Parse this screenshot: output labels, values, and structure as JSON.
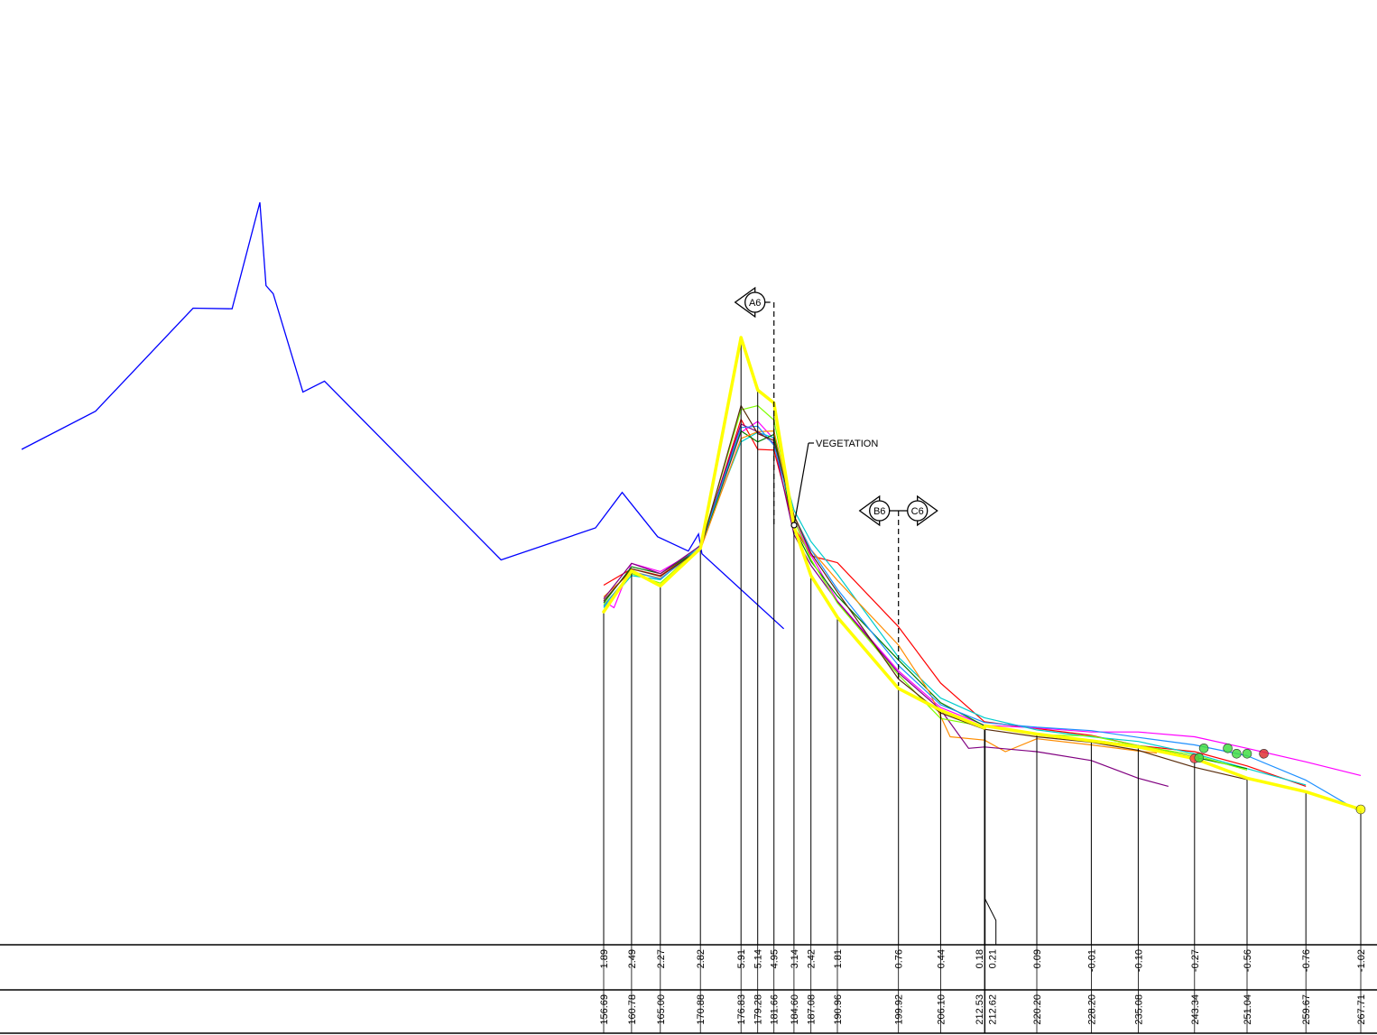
{
  "chart_data": {
    "type": "line",
    "x_unit": "chainage",
    "y_unit": "elevation",
    "stations": [
      {
        "chainage": "156.69",
        "elevation": "1.89"
      },
      {
        "chainage": "160.78",
        "elevation": "2.49"
      },
      {
        "chainage": "165.00",
        "elevation": "2.27"
      },
      {
        "chainage": "170.88",
        "elevation": "2.82"
      },
      {
        "chainage": "176.83",
        "elevation": "5.91"
      },
      {
        "chainage": "179.28",
        "elevation": "5.14"
      },
      {
        "chainage": "181.66",
        "elevation": "4.95"
      },
      {
        "chainage": "184.60",
        "elevation": "3.14"
      },
      {
        "chainage": "187.08",
        "elevation": "2.42"
      },
      {
        "chainage": "190.96",
        "elevation": "1.81"
      },
      {
        "chainage": "199.92",
        "elevation": "0.76"
      },
      {
        "chainage": "206.10",
        "elevation": "0.44"
      },
      {
        "chainage": "212.53",
        "elevation": "0.18"
      },
      {
        "chainage": "212.62",
        "elevation": "0.21"
      },
      {
        "chainage": "220.20",
        "elevation": "0.09"
      },
      {
        "chainage": "228.20",
        "elevation": "-0.01"
      },
      {
        "chainage": "235.08",
        "elevation": "-0.10"
      },
      {
        "chainage": "243.34",
        "elevation": "-0.27"
      },
      {
        "chainage": "251.04",
        "elevation": "-0.56"
      },
      {
        "chainage": "259.67",
        "elevation": "-0.76"
      },
      {
        "chainage": "267.71",
        "elevation": "-1.02"
      }
    ],
    "main_profile": {
      "color": "#ffff00",
      "x": [
        156.69,
        160.78,
        165.0,
        170.88,
        176.83,
        179.28,
        181.66,
        184.6,
        187.08,
        190.96,
        199.92,
        206.1,
        212.53,
        212.62,
        220.2,
        228.2,
        235.08,
        243.34,
        251.04,
        259.67,
        267.71
      ],
      "y": [
        1.89,
        2.49,
        2.27,
        2.82,
        5.91,
        5.14,
        4.95,
        3.14,
        2.42,
        1.81,
        0.76,
        0.44,
        0.18,
        0.21,
        0.09,
        -0.01,
        -0.1,
        -0.27,
        -0.56,
        -0.76,
        -1.02
      ]
    },
    "backshore_profile": {
      "color": "#0000ff",
      "x": [
        100.0,
        107.2,
        116.7,
        120.5,
        123.2,
        123.8,
        124.5,
        127.4,
        129.5,
        146.7,
        155.9,
        159.4,
        164.6,
        169.1,
        170.6,
        171.1,
        183.1
      ],
      "y": [
        4.27,
        4.83,
        6.34,
        6.33,
        7.89,
        6.67,
        6.55,
        5.11,
        5.27,
        2.65,
        3.12,
        3.64,
        2.99,
        2.78,
        3.03,
        2.74,
        1.64
      ]
    },
    "historical_profiles": [
      {
        "color": "#ff0000",
        "x": [
          156.69,
          160.78,
          165.0,
          170.88,
          176.83,
          179.28,
          181.66,
          184.6,
          187.08,
          190.96,
          199.92,
          206.1,
          212.53,
          220.2,
          228.2,
          235.08,
          243.34,
          251.04,
          259.67
        ],
        "y": [
          2.28,
          2.52,
          2.42,
          2.82,
          4.71,
          4.27,
          4.26,
          3.14,
          2.71,
          2.61,
          1.67,
          0.84,
          0.27,
          0.17,
          0.07,
          -0.08,
          -0.17,
          -0.38,
          -0.68
        ]
      },
      {
        "color": "#ff00ff",
        "x": [
          156.69,
          158.2,
          160.78,
          165.0,
          170.88,
          176.83,
          179.28,
          181.66,
          184.6,
          187.08,
          190.96,
          199.92,
          206.1,
          212.53,
          220.2,
          228.2,
          235.08,
          243.34,
          251.04,
          259.67,
          267.71
        ],
        "y": [
          2.05,
          1.95,
          2.6,
          2.48,
          2.82,
          4.52,
          4.68,
          4.42,
          3.24,
          2.72,
          2.05,
          1.02,
          0.48,
          0.22,
          0.18,
          0.12,
          0.12,
          0.05,
          -0.12,
          -0.32,
          -0.52
        ]
      },
      {
        "color": "#00cccc",
        "x": [
          156.69,
          160.78,
          165.0,
          170.88,
          176.83,
          179.28,
          181.66,
          184.6,
          187.08,
          190.96,
          199.92,
          206.1,
          212.53,
          220.2,
          228.2,
          235.08,
          243.34,
          251.04,
          259.67
        ],
        "y": [
          1.95,
          2.42,
          2.36,
          2.87,
          4.38,
          4.52,
          4.44,
          3.38,
          2.92,
          2.44,
          1.22,
          0.62,
          0.33,
          0.15,
          0.05,
          -0.02,
          -0.2,
          -0.42,
          -0.66
        ]
      },
      {
        "color": "#008000",
        "x": [
          156.69,
          160.78,
          165.0,
          170.88,
          176.83,
          179.28,
          181.66,
          184.6,
          187.08,
          190.96,
          199.92,
          206.1,
          212.53,
          220.2,
          228.2,
          235.08,
          243.34,
          251.04
        ],
        "y": [
          2.02,
          2.55,
          2.45,
          2.82,
          4.54,
          4.38,
          4.49,
          3.12,
          2.63,
          2.12,
          1.18,
          0.55,
          0.21,
          0.1,
          0.0,
          -0.08,
          -0.25,
          -0.42
        ]
      },
      {
        "color": "#ff8c00",
        "x": [
          156.69,
          160.78,
          165.0,
          170.88,
          176.83,
          179.28,
          181.66,
          184.6,
          187.08,
          190.96,
          199.92,
          204.5,
          207.5,
          212.53,
          215.6,
          220.2,
          228.2,
          235.08,
          237.8
        ],
        "y": [
          2.11,
          2.48,
          2.38,
          2.8,
          4.43,
          4.53,
          4.54,
          3.3,
          2.8,
          2.35,
          1.4,
          0.7,
          0.05,
          0.0,
          -0.17,
          0.02,
          -0.07,
          -0.16,
          -0.19
        ]
      },
      {
        "color": "#800080",
        "x": [
          156.69,
          160.78,
          165.0,
          170.88,
          176.83,
          179.28,
          181.66,
          184.6,
          187.08,
          190.96,
          199.92,
          206.1,
          210.2,
          212.53,
          220.2,
          228.2,
          235.08,
          239.5
        ],
        "y": [
          2.08,
          2.6,
          2.45,
          2.86,
          4.64,
          4.53,
          4.36,
          3.02,
          2.57,
          2.04,
          0.99,
          0.45,
          -0.12,
          -0.1,
          -0.17,
          -0.3,
          -0.56,
          -0.68
        ]
      },
      {
        "color": "#7fff00",
        "x": [
          156.69,
          160.78,
          165.0,
          170.88,
          176.83,
          179.28,
          181.66,
          184.6,
          187.08,
          190.96,
          199.92,
          206.1,
          212.53,
          220.2,
          228.2,
          235.08,
          243.34,
          251.04
        ],
        "y": [
          1.99,
          2.45,
          2.31,
          2.84,
          4.85,
          4.91,
          4.7,
          3.24,
          2.66,
          2.02,
          0.96,
          0.32,
          0.2,
          0.08,
          0.06,
          -0.08,
          -0.22,
          -0.44
        ]
      },
      {
        "color": "#1e90ff",
        "x": [
          156.69,
          160.78,
          165.0,
          170.88,
          176.83,
          179.28,
          181.66,
          184.6,
          187.08,
          190.96,
          199.92,
          206.1,
          212.53,
          220.2,
          228.2,
          235.08,
          243.34,
          251.04,
          259.67,
          267.71
        ],
        "y": [
          1.97,
          2.48,
          2.37,
          2.84,
          4.59,
          4.61,
          4.33,
          3.29,
          2.8,
          2.22,
          1.1,
          0.52,
          0.26,
          0.19,
          0.14,
          0.04,
          -0.07,
          -0.23,
          -0.59,
          -1.06
        ]
      },
      {
        "color": "#5a2d0c",
        "x": [
          156.69,
          160.78,
          165.0,
          170.88,
          176.83,
          179.28,
          181.66,
          184.6,
          187.08,
          190.96,
          199.92,
          206.1,
          212.53,
          220.2,
          228.2,
          235.08,
          243.34,
          251.04
        ],
        "y": [
          2.05,
          2.52,
          2.41,
          2.81,
          4.91,
          4.5,
          4.4,
          3.3,
          2.75,
          2.18,
          0.9,
          0.4,
          0.16,
          0.05,
          -0.03,
          -0.15,
          -0.4,
          -0.58
        ]
      }
    ],
    "annotations": {
      "vegetation_label": "VEGETATION",
      "section_markers": [
        {
          "label": "A6",
          "chainage": 181.66
        },
        {
          "label": "B6",
          "chainage": 199.92
        },
        {
          "label": "C6",
          "chainage": 199.92
        }
      ]
    },
    "survey_points": [
      {
        "chainage": 243.34,
        "elevation": -0.27,
        "color": "#ff4444"
      },
      {
        "chainage": 244.0,
        "elevation": -0.26,
        "color": "#44dd44"
      },
      {
        "chainage": 244.7,
        "elevation": -0.12,
        "color": "#44dd44"
      },
      {
        "chainage": 248.2,
        "elevation": -0.12,
        "color": "#44dd44"
      },
      {
        "chainage": 249.5,
        "elevation": -0.2,
        "color": "#44dd44"
      },
      {
        "chainage": 251.04,
        "elevation": -0.2,
        "color": "#44dd44"
      },
      {
        "chainage": 253.5,
        "elevation": -0.2,
        "color": "#dd3333"
      },
      {
        "chainage": 267.71,
        "elevation": -1.02,
        "color": "#ffff00"
      }
    ]
  }
}
